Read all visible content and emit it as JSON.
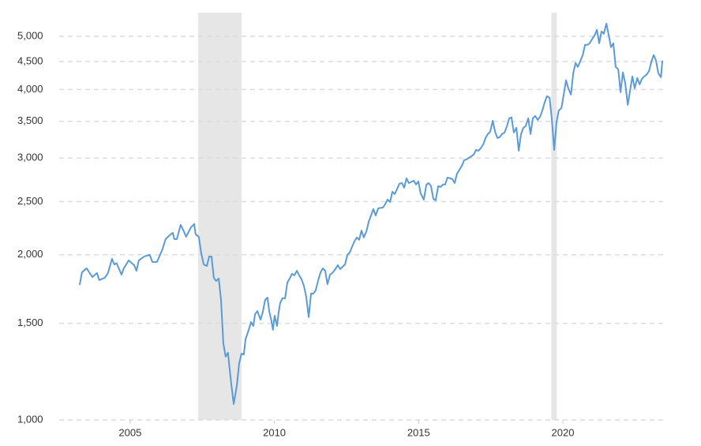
{
  "chart_data": {
    "type": "line",
    "log_scale": true,
    "grid": true,
    "xlim": [
      2003.17,
      2023.53
    ],
    "ylim": [
      1000,
      5450
    ],
    "xticks": [
      2005,
      2010,
      2015,
      2020
    ],
    "yticks": [
      {
        "value": 1000,
        "label": "1,000"
      },
      {
        "value": 1500,
        "label": "1,500"
      },
      {
        "value": 2000,
        "label": "2,000"
      },
      {
        "value": 2500,
        "label": "2,500"
      },
      {
        "value": 3000,
        "label": "3,000"
      },
      {
        "value": 3500,
        "label": "3,500"
      },
      {
        "value": 4000,
        "label": "4,000"
      },
      {
        "value": 4500,
        "label": "4,500"
      },
      {
        "value": 5000,
        "label": "5,000"
      }
    ],
    "shaded_ranges": [
      [
        2007.36,
        2008.86
      ],
      [
        2019.6,
        2019.79
      ]
    ],
    "shade_color": "#e6e6e6",
    "x": [
      2003.25,
      2003.33,
      2003.49,
      2003.69,
      2003.85,
      2003.93,
      2004.12,
      2004.23,
      2004.37,
      2004.45,
      2004.53,
      2004.7,
      2004.78,
      2004.95,
      2005.14,
      2005.22,
      2005.3,
      2005.49,
      2005.68,
      2005.77,
      2005.93,
      2006.12,
      2006.23,
      2006.4,
      2006.48,
      2006.53,
      2006.62,
      2006.75,
      2006.86,
      2006.94,
      2007.11,
      2007.22,
      2007.27,
      2007.38,
      2007.46,
      2007.55,
      2007.66,
      2007.74,
      2007.82,
      2007.9,
      2007.98,
      2008.07,
      2008.15,
      2008.23,
      2008.31,
      2008.39,
      2008.5,
      2008.59,
      2008.7,
      2008.78,
      2008.86,
      2008.94,
      2009.0,
      2009.11,
      2009.19,
      2009.27,
      2009.33,
      2009.41,
      2009.52,
      2009.6,
      2009.68,
      2009.76,
      2009.82,
      2009.9,
      2009.95,
      2010.01,
      2010.09,
      2010.15,
      2010.2,
      2010.28,
      2010.37,
      2010.45,
      2010.53,
      2010.61,
      2010.69,
      2010.78,
      2010.86,
      2010.94,
      2011.02,
      2011.1,
      2011.19,
      2011.27,
      2011.35,
      2011.43,
      2011.52,
      2011.6,
      2011.68,
      2011.76,
      2011.84,
      2011.93,
      2012.01,
      2012.09,
      2012.2,
      2012.28,
      2012.36,
      2012.45,
      2012.53,
      2012.61,
      2012.69,
      2012.77,
      2012.86,
      2012.94,
      2013.02,
      2013.1,
      2013.19,
      2013.27,
      2013.35,
      2013.43,
      2013.51,
      2013.6,
      2013.76,
      2013.84,
      2013.92,
      2014.01,
      2014.09,
      2014.17,
      2014.25,
      2014.33,
      2014.42,
      2014.5,
      2014.58,
      2014.66,
      2014.83,
      2014.91,
      2014.99,
      2015.07,
      2015.18,
      2015.27,
      2015.35,
      2015.43,
      2015.51,
      2015.59,
      2015.68,
      2015.76,
      2015.84,
      2015.92,
      2016.0,
      2016.09,
      2016.17,
      2016.25,
      2016.33,
      2016.42,
      2016.5,
      2016.58,
      2016.66,
      2016.74,
      2016.83,
      2016.91,
      2016.99,
      2017.07,
      2017.15,
      2017.24,
      2017.32,
      2017.4,
      2017.48,
      2017.57,
      2017.65,
      2017.73,
      2017.81,
      2017.89,
      2017.98,
      2018.06,
      2018.14,
      2018.22,
      2018.3,
      2018.39,
      2018.47,
      2018.55,
      2018.63,
      2018.71,
      2018.8,
      2018.88,
      2018.96,
      2019.04,
      2019.13,
      2019.21,
      2019.29,
      2019.37,
      2019.45,
      2019.54,
      2019.62,
      2019.7,
      2019.78,
      2019.86,
      2019.95,
      2020.03,
      2020.11,
      2020.19,
      2020.28,
      2020.36,
      2020.44,
      2020.52,
      2020.6,
      2020.69,
      2020.77,
      2020.85,
      2020.93,
      2021.01,
      2021.1,
      2021.18,
      2021.26,
      2021.34,
      2021.42,
      2021.51,
      2021.59,
      2021.67,
      2021.75,
      2021.83,
      2021.92,
      2022.0,
      2022.08,
      2022.16,
      2022.25,
      2022.33,
      2022.41,
      2022.49,
      2022.58,
      2022.66,
      2022.74,
      2022.82,
      2022.9,
      2022.99,
      2023.07,
      2023.15,
      2023.23,
      2023.31,
      2023.4,
      2023.45
    ],
    "series": [
      {
        "color": "#5b9bd5",
        "values": [
          1762,
          1858,
          1889,
          1821,
          1852,
          1798,
          1816,
          1852,
          1966,
          1920,
          1930,
          1840,
          1889,
          1953,
          1914,
          1870,
          1953,
          1986,
          1999,
          1940,
          1940,
          2046,
          2136,
          2178,
          2192,
          2136,
          2136,
          2267,
          2207,
          2157,
          2245,
          2275,
          2178,
          2157,
          2018,
          1920,
          1908,
          1986,
          1986,
          1816,
          1792,
          1810,
          1655,
          1379,
          1304,
          1326,
          1169,
          1069,
          1157,
          1269,
          1321,
          1316,
          1403,
          1459,
          1508,
          1483,
          1559,
          1579,
          1523,
          1574,
          1655,
          1671,
          1579,
          1513,
          1459,
          1549,
          1483,
          1574,
          1633,
          1666,
          1666,
          1780,
          1810,
          1846,
          1834,
          1870,
          1834,
          1804,
          1757,
          1682,
          1539,
          1699,
          1699,
          1722,
          1798,
          1858,
          1889,
          1870,
          1768,
          1840,
          1852,
          1876,
          1914,
          1883,
          1901,
          1920,
          1999,
          2018,
          2066,
          2114,
          2150,
          2129,
          2214,
          2150,
          2207,
          2297,
          2358,
          2422,
          2358,
          2430,
          2438,
          2471,
          2520,
          2495,
          2605,
          2580,
          2632,
          2693,
          2702,
          2649,
          2756,
          2702,
          2729,
          2685,
          2720,
          2589,
          2520,
          2685,
          2702,
          2667,
          2529,
          2512,
          2667,
          2658,
          2685,
          2685,
          2765,
          2756,
          2747,
          2702,
          2811,
          2858,
          2906,
          2974,
          2983,
          3003,
          3024,
          3044,
          3105,
          3094,
          3125,
          3178,
          3264,
          3319,
          3351,
          3510,
          3351,
          3264,
          3275,
          3319,
          3340,
          3429,
          3545,
          3557,
          3340,
          3407,
          3094,
          3319,
          3407,
          3429,
          3545,
          3319,
          3545,
          3581,
          3521,
          3569,
          3665,
          3790,
          3890,
          3864,
          3521,
          3105,
          3486,
          3665,
          3701,
          3916,
          4157,
          4021,
          3916,
          4282,
          4471,
          4398,
          4501,
          4622,
          4825,
          4825,
          4857,
          4937,
          5020,
          5137,
          4857,
          5104,
          5053,
          5276,
          5020,
          4777,
          4857,
          4398,
          4354,
          3955,
          4297,
          4116,
          3751,
          3981,
          4226,
          4021,
          4198,
          4088,
          4184,
          4226,
          4255,
          4325,
          4501,
          4622,
          4516,
          4283,
          4212,
          4516
        ]
      }
    ]
  }
}
